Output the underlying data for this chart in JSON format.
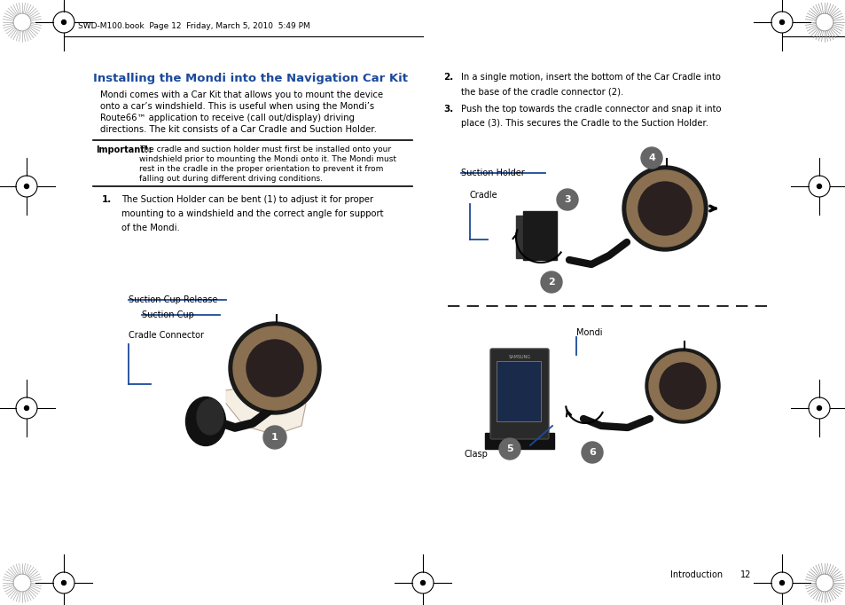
{
  "background_color": "#ffffff",
  "page_header": "SWD-M100.book  Page 12  Friday, March 5, 2010  5:49 PM",
  "title": "Installing the Mondi into the Navigation Car Kit",
  "title_color": "#1B4A9B",
  "intro_lines": [
    "Mondi comes with a Car Kit that allows you to mount the device",
    "onto a car’s windshield. This is useful when using the Mondi’s",
    "Route66™ application to receive (call out/display) driving",
    "directions. The kit consists of a Car Cradle and Suction Holder."
  ],
  "important_label": "Important!:",
  "important_lines": [
    "The cradle and suction holder must first be installed onto your",
    "windshield prior to mounting the Mondi onto it. The Mondi must",
    "rest in the cradle in the proper orientation to prevent it from",
    "falling out during different driving conditions."
  ],
  "step1_lines": [
    "The Suction Holder can be bent (1) to adjust it for proper",
    "mounting to a windshield and the correct angle for support",
    "of the Mondi."
  ],
  "step2_lines": [
    "In a single motion, insert the bottom of the Car Cradle into",
    "the base of the cradle connector (2)."
  ],
  "step3_lines": [
    "Push the top towards the cradle connector and snap it into",
    "place (3). This secures the Cradle to the Suction Holder."
  ],
  "label_color": "#1B4A9B",
  "label_suction_cup_release": "Suction Cup Release",
  "label_suction_cup": "Suction Cup",
  "label_cradle_connector": "Cradle Connector",
  "label_suction_holder": "Suction Holder",
  "label_cradle": "Cradle",
  "label_mondi": "Mondi",
  "label_clasp": "Clasp",
  "footer_intro": "Introduction",
  "footer_page": "12",
  "number_circle_color": "#666666",
  "number_circle_text_color": "#ffffff",
  "line_color": "#000000",
  "dashed_line_color": "#000000"
}
